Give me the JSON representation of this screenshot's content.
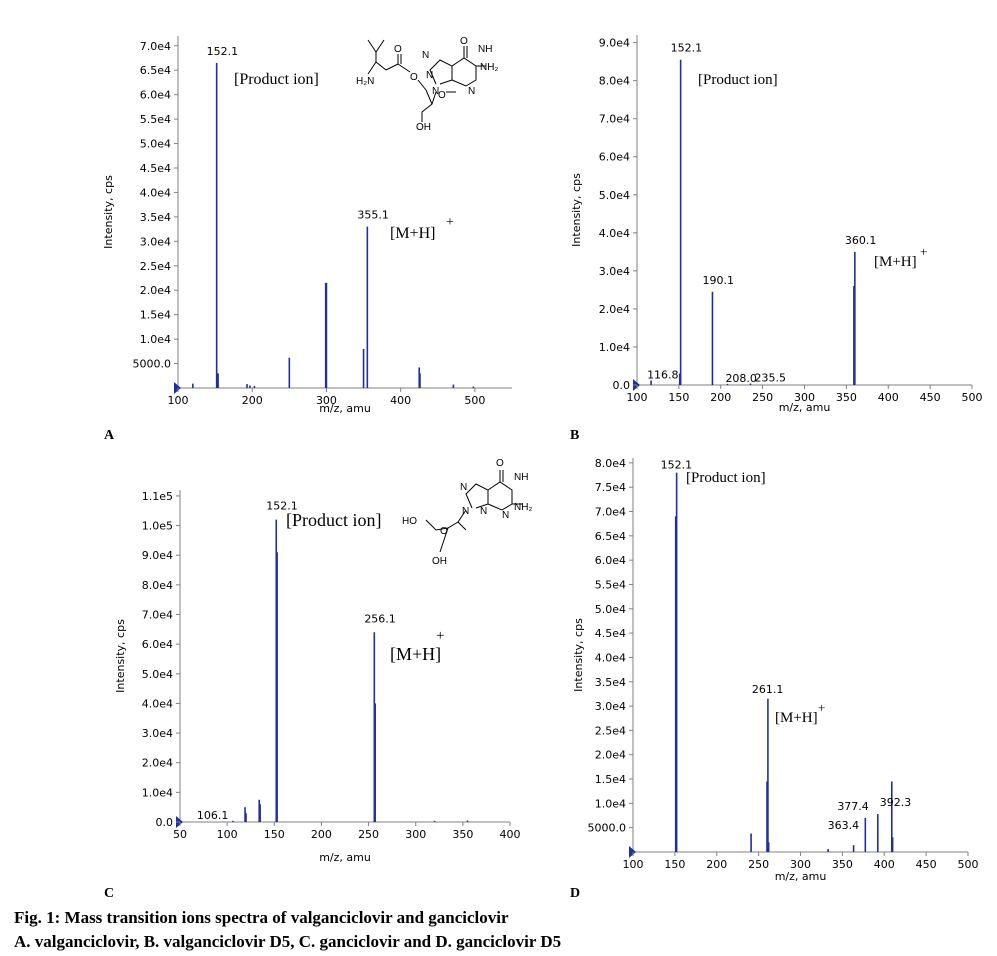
{
  "caption": {
    "line1": "Fig. 1: Mass transition ions spectra of valganciclovir and ganciclovir",
    "line2": "A. valganciclovir, B. valganciclovir D5, C. ganciclovir and D. ganciclovir D5"
  },
  "colors": {
    "spectrum": "#1f2fa0",
    "axis": "#808080",
    "text": "#000000"
  },
  "chart_data": [
    {
      "panel": "A",
      "type": "bar",
      "xlabel": "m/z, amu",
      "ylabel": "Intensity, cps",
      "xlim": [
        100,
        550
      ],
      "ylim": [
        0,
        72000
      ],
      "xticks": [
        100,
        200,
        300,
        400,
        500
      ],
      "yticks": [
        5000,
        10000,
        15000,
        20000,
        25000,
        30000,
        35000,
        40000,
        45000,
        50000,
        55000,
        60000,
        65000,
        70000
      ],
      "ytick_labels": [
        "5000.0",
        "1.0e4",
        "1.5e4",
        "2.0e4",
        "2.5e4",
        "3.0e4",
        "3.5e4",
        "4.0e4",
        "4.5e4",
        "5.0e4",
        "5.5e4",
        "6.0e4",
        "6.5e4",
        "7.0e4"
      ],
      "peaks": [
        {
          "mz": 120,
          "value": 900
        },
        {
          "mz": 152.1,
          "value": 66500
        },
        {
          "mz": 153,
          "value": 2200
        },
        {
          "mz": 154,
          "value": 3000
        },
        {
          "mz": 193,
          "value": 800
        },
        {
          "mz": 197,
          "value": 500
        },
        {
          "mz": 203,
          "value": 400
        },
        {
          "mz": 250,
          "value": 6200
        },
        {
          "mz": 299,
          "value": 21500
        },
        {
          "mz": 300,
          "value": 21500
        },
        {
          "mz": 350,
          "value": 8000
        },
        {
          "mz": 355.1,
          "value": 33000
        },
        {
          "mz": 425,
          "value": 4200
        },
        {
          "mz": 426,
          "value": 3000
        },
        {
          "mz": 471,
          "value": 700
        },
        {
          "mz": 498,
          "value": 300
        }
      ],
      "peak_labels": [
        {
          "mz": 152.1,
          "text": "152.1"
        },
        {
          "mz": 355.1,
          "text": "355.1"
        }
      ],
      "annotations": [
        "[Product ion]",
        "[M+H]",
        "+"
      ],
      "structure": {
        "labels": [
          "O",
          "NH",
          "NH₂",
          "N",
          "N",
          "N",
          "N",
          "O",
          "O",
          "H₂N",
          "O",
          "OH"
        ]
      }
    },
    {
      "panel": "B",
      "type": "bar",
      "xlabel": "m/z, amu",
      "ylabel": "Intensity, cps",
      "xlim": [
        100,
        500
      ],
      "ylim": [
        0,
        92000
      ],
      "xticks": [
        100,
        150,
        200,
        250,
        300,
        350,
        400,
        450,
        500
      ],
      "yticks": [
        0,
        10000,
        20000,
        30000,
        40000,
        50000,
        60000,
        70000,
        80000,
        90000
      ],
      "ytick_labels": [
        "0.0",
        "1.0e4",
        "2.0e4",
        "3.0e4",
        "4.0e4",
        "5.0e4",
        "6.0e4",
        "7.0e4",
        "8.0e4",
        "9.0e4"
      ],
      "peaks": [
        {
          "mz": 116.8,
          "value": 1200
        },
        {
          "mz": 152.1,
          "value": 85500
        },
        {
          "mz": 151,
          "value": 3000
        },
        {
          "mz": 190.1,
          "value": 24500
        },
        {
          "mz": 208.0,
          "value": 300
        },
        {
          "mz": 235.5,
          "value": 400
        },
        {
          "mz": 360.1,
          "value": 35000
        },
        {
          "mz": 359,
          "value": 26000
        }
      ],
      "peak_labels": [
        {
          "mz": 152.1,
          "text": "152.1"
        },
        {
          "mz": 190.1,
          "text": "190.1"
        },
        {
          "mz": 360.1,
          "text": "360.1"
        },
        {
          "mz": 116.8,
          "text": "116.8"
        },
        {
          "mz": 208.0,
          "text": "208.0"
        },
        {
          "mz": 235.5,
          "text": "235.5"
        }
      ],
      "annotations": [
        "[Product ion]",
        "[M+H]",
        "+"
      ]
    },
    {
      "panel": "C",
      "type": "bar",
      "xlabel": "m/z, amu",
      "ylabel": "Intensity, cps",
      "xlim": [
        50,
        400
      ],
      "ylim": [
        0,
        112000
      ],
      "xticks": [
        50,
        100,
        150,
        200,
        250,
        300,
        350,
        400
      ],
      "yticks": [
        0,
        10000,
        20000,
        30000,
        40000,
        50000,
        60000,
        70000,
        80000,
        90000,
        100000,
        110000
      ],
      "ytick_labels": [
        "0.0",
        "1.0e4",
        "2.0e4",
        "3.0e4",
        "4.0e4",
        "5.0e4",
        "6.0e4",
        "7.0e4",
        "8.0e4",
        "9.0e4",
        "1.0e5",
        "1.1e5"
      ],
      "peaks": [
        {
          "mz": 106.1,
          "value": 400
        },
        {
          "mz": 119,
          "value": 5000
        },
        {
          "mz": 120,
          "value": 3000
        },
        {
          "mz": 134,
          "value": 7500
        },
        {
          "mz": 135,
          "value": 6000
        },
        {
          "mz": 152.1,
          "value": 102000
        },
        {
          "mz": 153,
          "value": 91000
        },
        {
          "mz": 256.1,
          "value": 64000
        },
        {
          "mz": 257,
          "value": 40000
        },
        {
          "mz": 320,
          "value": 400
        },
        {
          "mz": 355,
          "value": 500
        }
      ],
      "peak_labels": [
        {
          "mz": 152.1,
          "text": "152.1"
        },
        {
          "mz": 256.1,
          "text": "256.1"
        },
        {
          "mz": 106.1,
          "text": "106.1"
        }
      ],
      "annotations": [
        "[Product ion]",
        "[M+H]",
        "+"
      ],
      "structure": {
        "labels": [
          "O",
          "NH",
          "NH₂",
          "N",
          "N",
          "N",
          "N",
          "HO",
          "O",
          "OH"
        ]
      }
    },
    {
      "panel": "D",
      "type": "bar",
      "xlabel": "m/z, amu",
      "ylabel": "Intensity, cps",
      "xlim": [
        100,
        500
      ],
      "ylim": [
        0,
        81000
      ],
      "xticks": [
        100,
        150,
        200,
        250,
        300,
        350,
        400,
        450,
        500
      ],
      "yticks": [
        5000,
        10000,
        15000,
        20000,
        25000,
        30000,
        35000,
        40000,
        45000,
        50000,
        55000,
        60000,
        65000,
        70000,
        75000,
        80000
      ],
      "ytick_labels": [
        "5000.0",
        "1.0e4",
        "1.5e4",
        "2.0e4",
        "2.5e4",
        "3.0e4",
        "3.5e4",
        "4.0e4",
        "4.5e4",
        "5.0e4",
        "5.5e4",
        "6.0e4",
        "6.5e4",
        "7.0e4",
        "7.5e4",
        "8.0e4"
      ],
      "peaks": [
        {
          "mz": 152.1,
          "value": 78000
        },
        {
          "mz": 151,
          "value": 69000
        },
        {
          "mz": 241,
          "value": 3800
        },
        {
          "mz": 261.1,
          "value": 31500
        },
        {
          "mz": 260,
          "value": 14500
        },
        {
          "mz": 262,
          "value": 2000
        },
        {
          "mz": 333,
          "value": 600
        },
        {
          "mz": 363.4,
          "value": 1400
        },
        {
          "mz": 377.4,
          "value": 7000
        },
        {
          "mz": 392.3,
          "value": 7800
        },
        {
          "mz": 409,
          "value": 14500
        },
        {
          "mz": 410,
          "value": 3000
        }
      ],
      "peak_labels": [
        {
          "mz": 152.1,
          "text": "152.1"
        },
        {
          "mz": 261.1,
          "text": "261.1"
        },
        {
          "mz": 377.4,
          "text": "377.4"
        },
        {
          "mz": 392.3,
          "text": "392.3"
        },
        {
          "mz": 363.4,
          "text": "363.4"
        }
      ],
      "annotations": [
        "[Product ion]",
        "[M+H]",
        "+"
      ]
    }
  ]
}
